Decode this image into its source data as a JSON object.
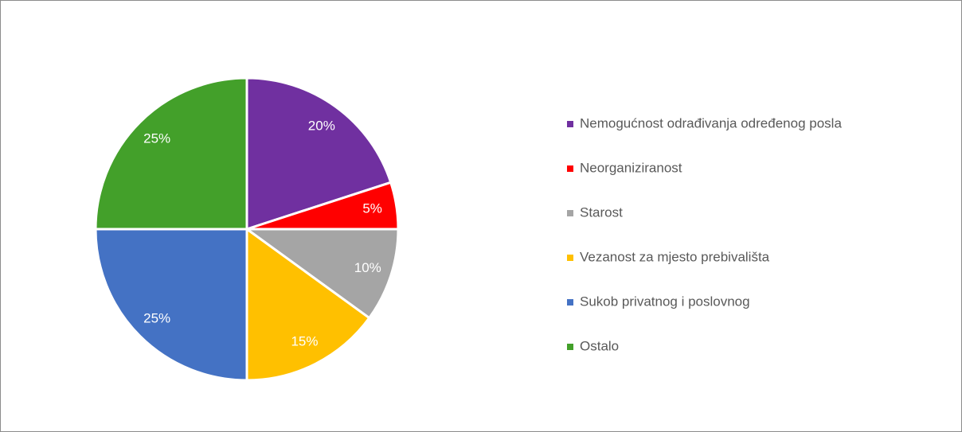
{
  "chart_data": {
    "type": "pie",
    "categories": [
      "Nemogućnost odrađivanja određenog posla",
      "Neorganiziranost",
      "Starost",
      "Vezanost za mjesto prebivališta",
      "Sukob privatnog i poslovnog",
      "Ostalo"
    ],
    "values": [
      20,
      5,
      10,
      15,
      25,
      25
    ],
    "value_labels": [
      "20%",
      "5%",
      "10%",
      "15%",
      "25%",
      "25%"
    ],
    "colors": [
      "#7030a0",
      "#ff0000",
      "#a5a5a5",
      "#ffc000",
      "#4472c4",
      "#43a02a"
    ],
    "legend": "right"
  }
}
